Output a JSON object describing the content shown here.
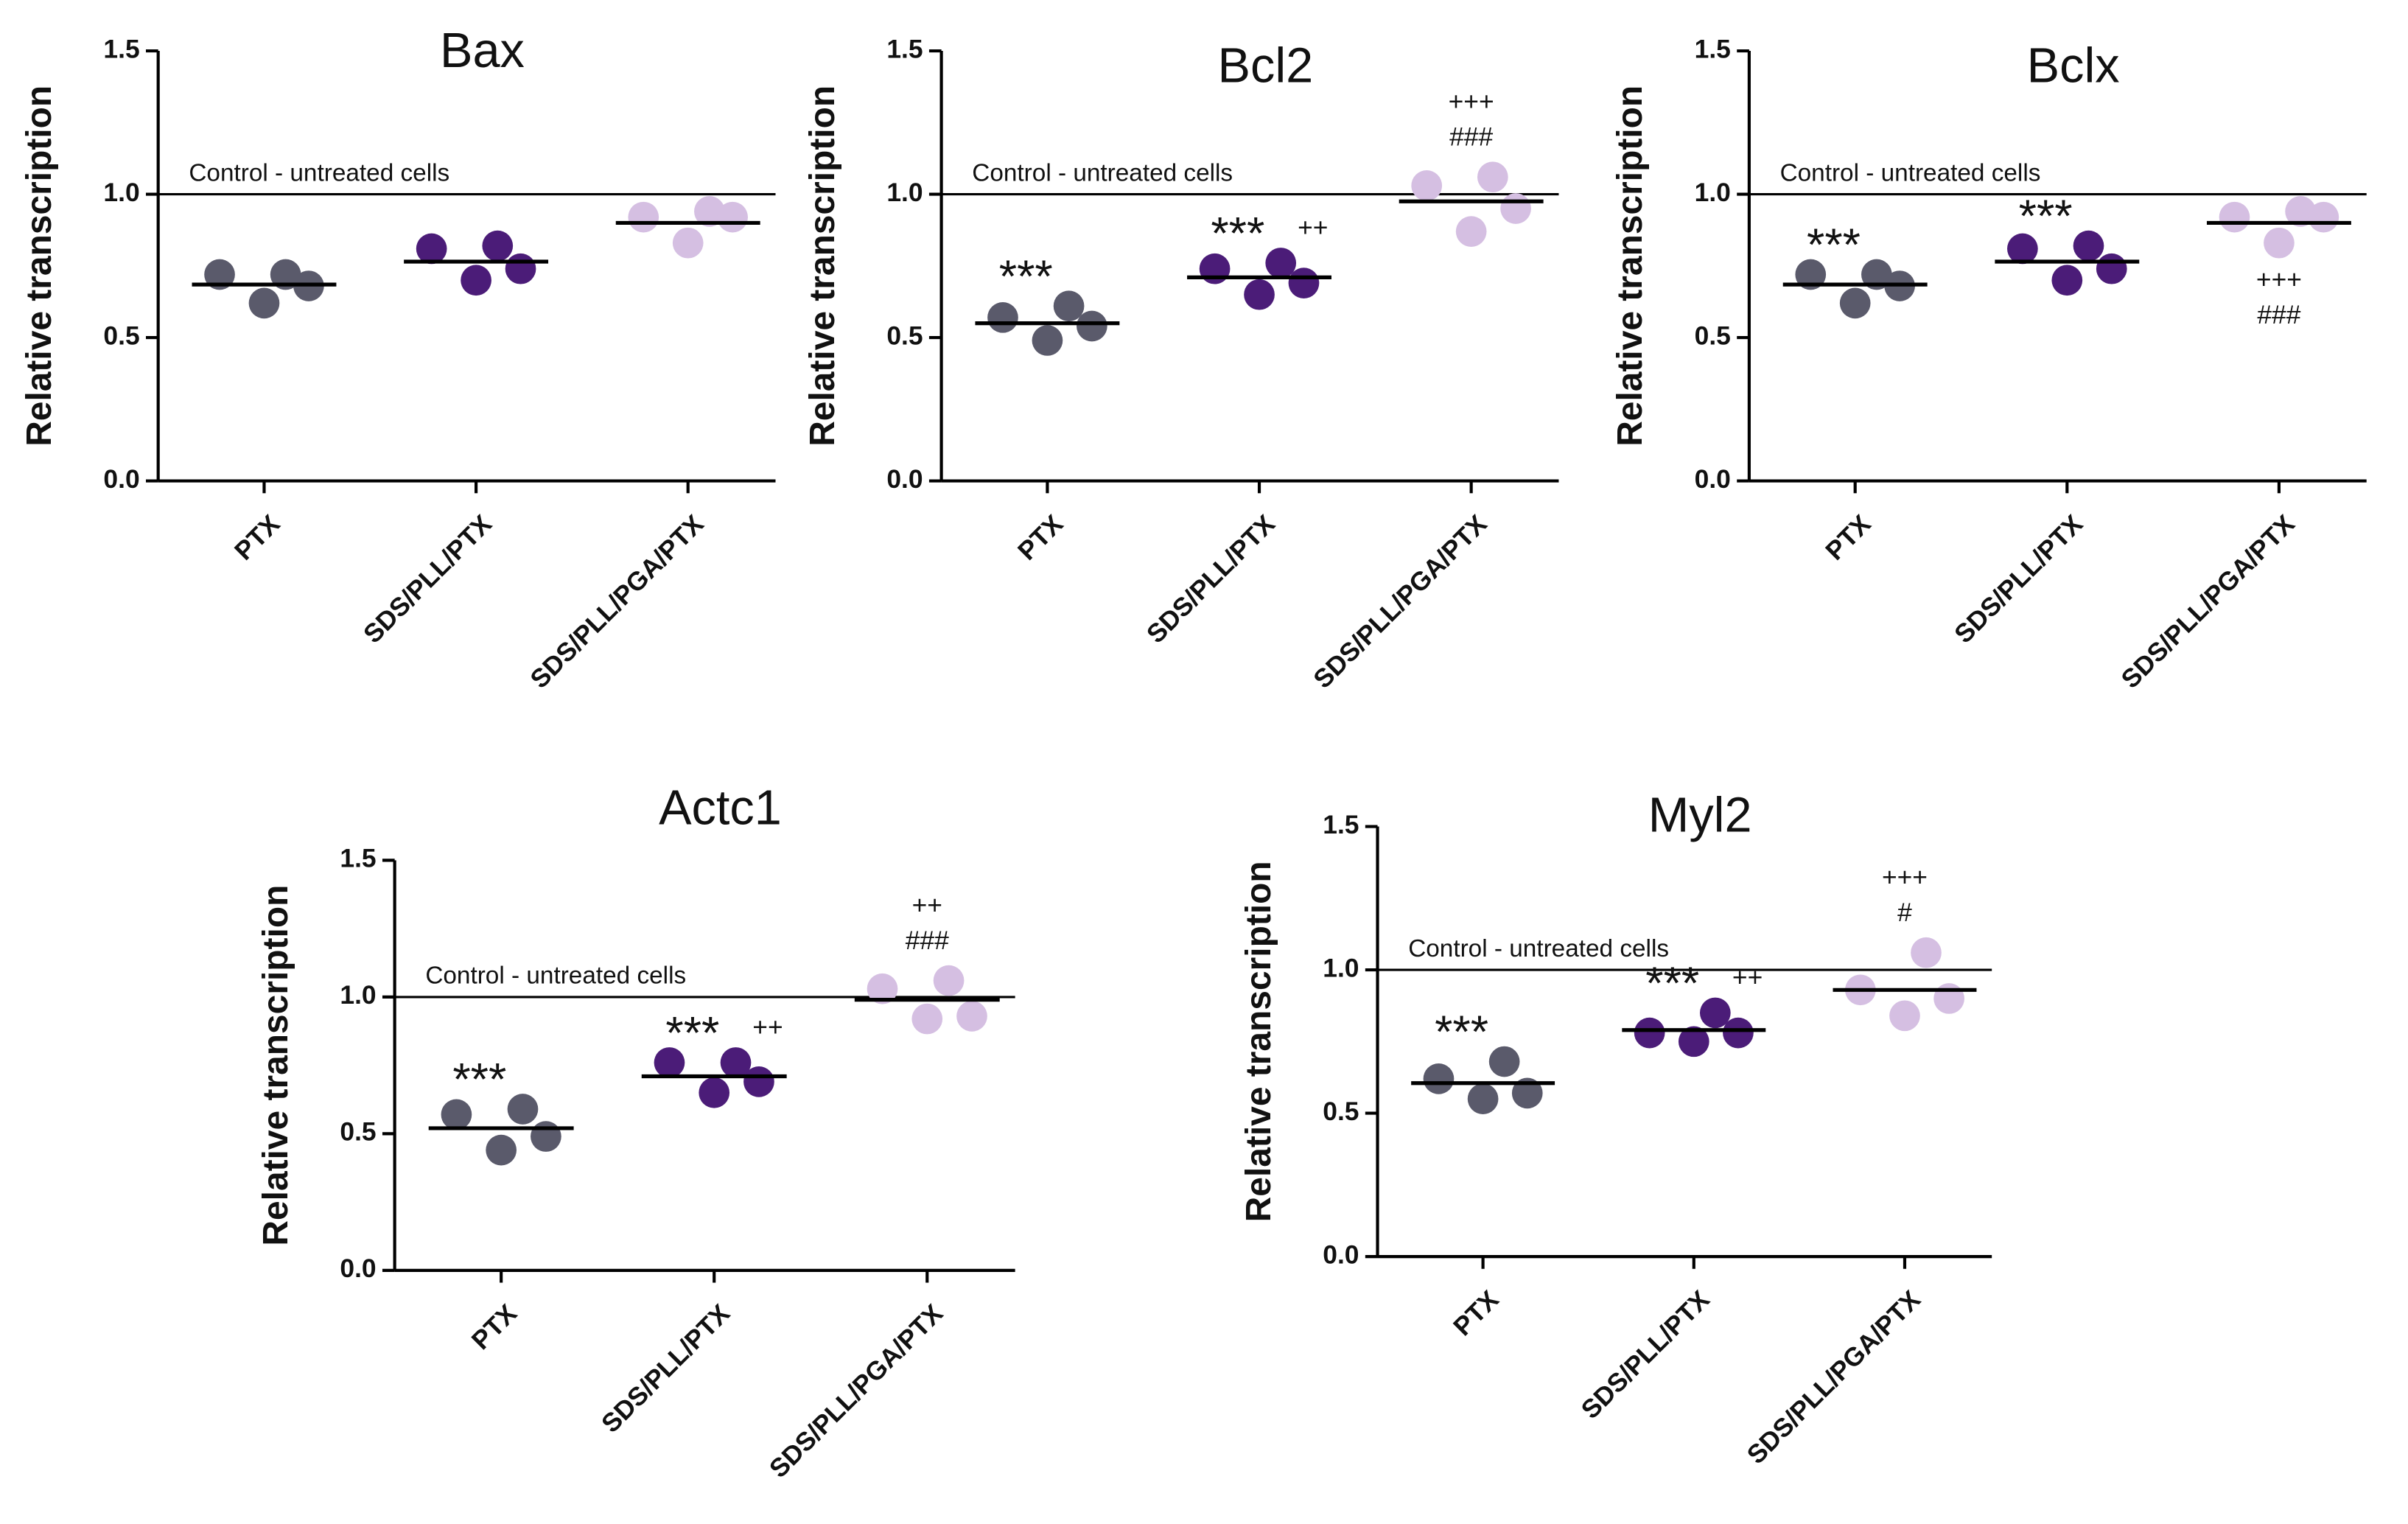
{
  "chart_data": [
    {
      "type": "strip",
      "title": "Bax",
      "ylabel": "Relative transcription",
      "categories": [
        "PTX",
        "SDS/PLL/PTX",
        "SDS/PLL/PGA/PTX"
      ],
      "colors": [
        "#5a5a6b",
        "#4b1c78",
        "#d5bfe2"
      ],
      "points": [
        [
          0.72,
          0.62,
          0.72,
          0.68
        ],
        [
          0.81,
          0.7,
          0.82,
          0.74
        ],
        [
          0.92,
          0.83,
          0.94,
          0.92
        ]
      ],
      "means": [
        0.685,
        0.765,
        0.9
      ],
      "ylim": [
        0,
        1.5
      ],
      "yticks": [
        {
          "value": 0,
          "label": "0.0"
        },
        {
          "value": 0.5,
          "label": "0.5"
        },
        {
          "value": 1,
          "label": "1.0"
        },
        {
          "value": 1.5,
          "label": "1.5"
        }
      ],
      "reference": {
        "value": 1,
        "label": "Control - untreated cells"
      },
      "annotations": []
    },
    {
      "type": "strip",
      "title": "Bcl2",
      "ylabel": "Relative transcription",
      "categories": [
        "PTX",
        "SDS/PLL/PTX",
        "SDS/PLL/PGA/PTX"
      ],
      "colors": [
        "#5a5a6b",
        "#4b1c78",
        "#d5bfe2"
      ],
      "points": [
        [
          0.57,
          0.49,
          0.61,
          0.54
        ],
        [
          0.74,
          0.65,
          0.76,
          0.69
        ],
        [
          1.03,
          0.87,
          1.06,
          0.95
        ]
      ],
      "means": [
        0.55,
        0.71,
        0.975
      ],
      "ylim": [
        0,
        1.5
      ],
      "yticks": [
        {
          "value": 0,
          "label": "0.0"
        },
        {
          "value": 0.5,
          "label": "0.5"
        },
        {
          "value": 1,
          "label": "1.0"
        },
        {
          "value": 1.5,
          "label": "1.5"
        }
      ],
      "reference": {
        "value": 1,
        "label": "Control - untreated cells"
      },
      "annotations": [
        {
          "category": 0,
          "text": "***"
        },
        {
          "category": 1,
          "text": "***"
        },
        {
          "category": 1,
          "text": "++"
        },
        {
          "category": 2,
          "text": "###"
        },
        {
          "category": 2,
          "text": "+++"
        }
      ]
    },
    {
      "type": "strip",
      "title": "Bclx",
      "ylabel": "Relative transcription",
      "categories": [
        "PTX",
        "SDS/PLL/PTX",
        "SDS/PLL/PGA/PTX"
      ],
      "colors": [
        "#5a5a6b",
        "#4b1c78",
        "#d5bfe2"
      ],
      "points": [
        [
          0.72,
          0.62,
          0.72,
          0.68
        ],
        [
          0.81,
          0.7,
          0.82,
          0.74
        ],
        [
          0.92,
          0.83,
          0.94,
          0.92
        ]
      ],
      "means": [
        0.685,
        0.765,
        0.9
      ],
      "ylim": [
        0,
        1.5
      ],
      "yticks": [
        {
          "value": 0,
          "label": "0.0"
        },
        {
          "value": 0.5,
          "label": "0.5"
        },
        {
          "value": 1,
          "label": "1.0"
        },
        {
          "value": 1.5,
          "label": "1.5"
        }
      ],
      "reference": {
        "value": 1,
        "label": "Control - untreated cells"
      },
      "annotations": [
        {
          "category": 0,
          "text": "***"
        },
        {
          "category": 1,
          "text": "***"
        },
        {
          "category": 2,
          "text": "+++",
          "placement": "below"
        },
        {
          "category": 2,
          "text": "###",
          "placement": "below"
        }
      ]
    },
    {
      "type": "strip",
      "title": "Actc1",
      "ylabel": "Relative transcription",
      "categories": [
        "PTX",
        "SDS/PLL/PTX",
        "SDS/PLL/PGA/PTX"
      ],
      "colors": [
        "#5a5a6b",
        "#4b1c78",
        "#d5bfe2"
      ],
      "points": [
        [
          0.57,
          0.44,
          0.59,
          0.49
        ],
        [
          0.76,
          0.65,
          0.76,
          0.69
        ],
        [
          1.03,
          0.92,
          1.06,
          0.93
        ]
      ],
      "means": [
        0.52,
        0.71,
        0.99
      ],
      "ylim": [
        0,
        1.5
      ],
      "yticks": [
        {
          "value": 0,
          "label": "0.0"
        },
        {
          "value": 0.5,
          "label": "0.5"
        },
        {
          "value": 1,
          "label": "1.0"
        },
        {
          "value": 1.5,
          "label": "1.5"
        }
      ],
      "reference": {
        "value": 1,
        "label": "Control - untreated cells"
      },
      "annotations": [
        {
          "category": 0,
          "text": "***"
        },
        {
          "category": 1,
          "text": "***"
        },
        {
          "category": 1,
          "text": "++"
        },
        {
          "category": 2,
          "text": "###"
        },
        {
          "category": 2,
          "text": "++"
        }
      ]
    },
    {
      "type": "strip",
      "title": "Myl2",
      "ylabel": "Relative transcription",
      "categories": [
        "PTX",
        "SDS/PLL/PTX",
        "SDS/PLL/PGA/PTX"
      ],
      "colors": [
        "#5a5a6b",
        "#4b1c78",
        "#d5bfe2"
      ],
      "points": [
        [
          0.62,
          0.55,
          0.68,
          0.57
        ],
        [
          0.78,
          0.75,
          0.85,
          0.78
        ],
        [
          0.93,
          0.84,
          1.06,
          0.9
        ]
      ],
      "means": [
        0.605,
        0.79,
        0.93
      ],
      "ylim": [
        0,
        1.5
      ],
      "yticks": [
        {
          "value": 0,
          "label": "0.0"
        },
        {
          "value": 0.5,
          "label": "0.5"
        },
        {
          "value": 1,
          "label": "1.0"
        },
        {
          "value": 1.5,
          "label": "1.5"
        }
      ],
      "reference": {
        "value": 1,
        "label": "Control - untreated cells"
      },
      "annotations": [
        {
          "category": 0,
          "text": "***"
        },
        {
          "category": 1,
          "text": "***"
        },
        {
          "category": 1,
          "text": "++"
        },
        {
          "category": 2,
          "text": "#"
        },
        {
          "category": 2,
          "text": "+++"
        }
      ]
    }
  ]
}
